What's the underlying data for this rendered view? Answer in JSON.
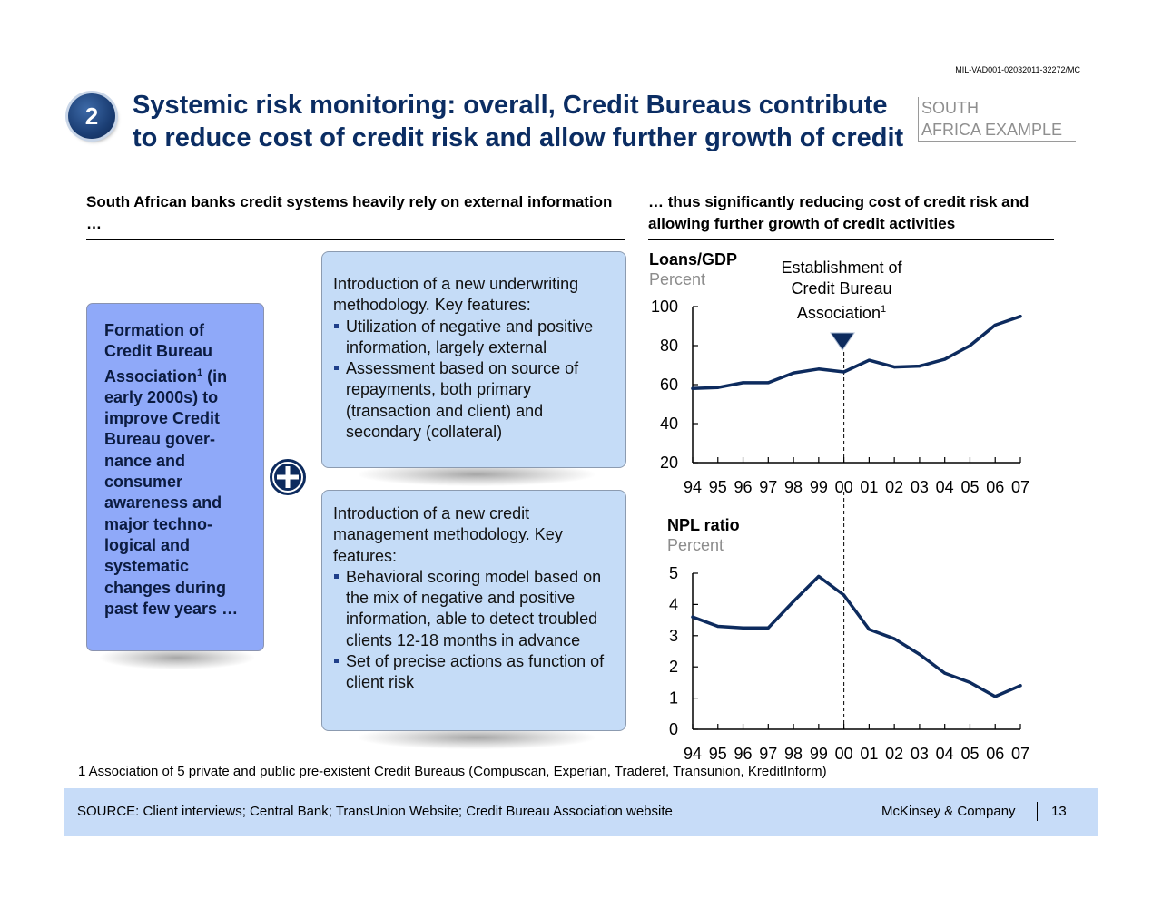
{
  "doc_id": "MIL-VAD001-02032011-32272/MC",
  "badge_number": "2",
  "title": "Systemic risk monitoring: overall, Credit Bureaus contribute to reduce cost of credit risk and allow further growth of credit",
  "region_tag": {
    "line1": "SOUTH",
    "line2": "AFRICA EXAMPLE"
  },
  "left_heading": "South African banks credit systems heavily rely on external information …",
  "right_heading": "… thus significantly reducing cost of credit risk and allowing further growth of credit activities",
  "formation_box": {
    "part1": "Formation of Credit Bureau Association",
    "sup": "1",
    "part2": " (in early 2000s) to improve Credit Bureau gover­nance and consumer awareness and major techno­logical and systematic changes during past few years …"
  },
  "feature_box_1": {
    "intro": "Introduction of a new underwriting methodology. Key features:",
    "bullets": [
      "Utilization of negative and positive information, largely external",
      "Assessment based on source of repayments, both primary (transaction and client) and secondary (collateral)"
    ]
  },
  "feature_box_2": {
    "intro": "Introduction of a new credit management methodology. Key features:",
    "bullets": [
      "Behavioral scoring model based on the mix of negative and positive information, able to detect troubled clients 12-18 months in advance",
      "Set of precise actions as function of client risk"
    ]
  },
  "event_label": {
    "line1": "Establishment of",
    "line2": "Credit Bureau",
    "line3": "Association",
    "sup": "1"
  },
  "colors": {
    "title": "#0b2d63",
    "series": "#0d2b5e",
    "footer_bg": "#c7dcf8",
    "formation_bg": "#8fa9f9",
    "feature_bg": "#c5dcf7"
  },
  "chart_data": [
    {
      "type": "line",
      "title": "Loans/GDP",
      "ylabel": "Percent",
      "categories": [
        "94",
        "95",
        "96",
        "97",
        "98",
        "99",
        "00",
        "01",
        "02",
        "03",
        "04",
        "05",
        "06",
        "07"
      ],
      "values": [
        58,
        58.5,
        61,
        61,
        66,
        68,
        66.5,
        72.5,
        69,
        69.5,
        73,
        80,
        90.5,
        95
      ],
      "ylim": [
        20,
        100
      ],
      "yticks": [
        20,
        40,
        60,
        80,
        100
      ],
      "event_category": "00"
    },
    {
      "type": "line",
      "title": "NPL ratio",
      "ylabel": "Percent",
      "categories": [
        "94",
        "95",
        "96",
        "97",
        "98",
        "99",
        "00",
        "01",
        "02",
        "03",
        "04",
        "05",
        "06",
        "07"
      ],
      "values": [
        3.6,
        3.3,
        3.25,
        3.25,
        4.1,
        4.9,
        4.3,
        3.2,
        2.9,
        2.4,
        1.8,
        1.5,
        1.05,
        1.4
      ],
      "ylim": [
        0,
        5
      ],
      "yticks": [
        0,
        1,
        2,
        3,
        4,
        5
      ],
      "event_category": "00"
    }
  ],
  "footnote": "1 Association of 5 private and public pre-existent Credit Bureaus (Compuscan, Experian, Traderef, Transunion, KreditInform)",
  "footer": {
    "source": "SOURCE: Client interviews; Central Bank; TransUnion Website; Credit Bureau Association website",
    "brand": "McKinsey & Company",
    "page": "13"
  }
}
